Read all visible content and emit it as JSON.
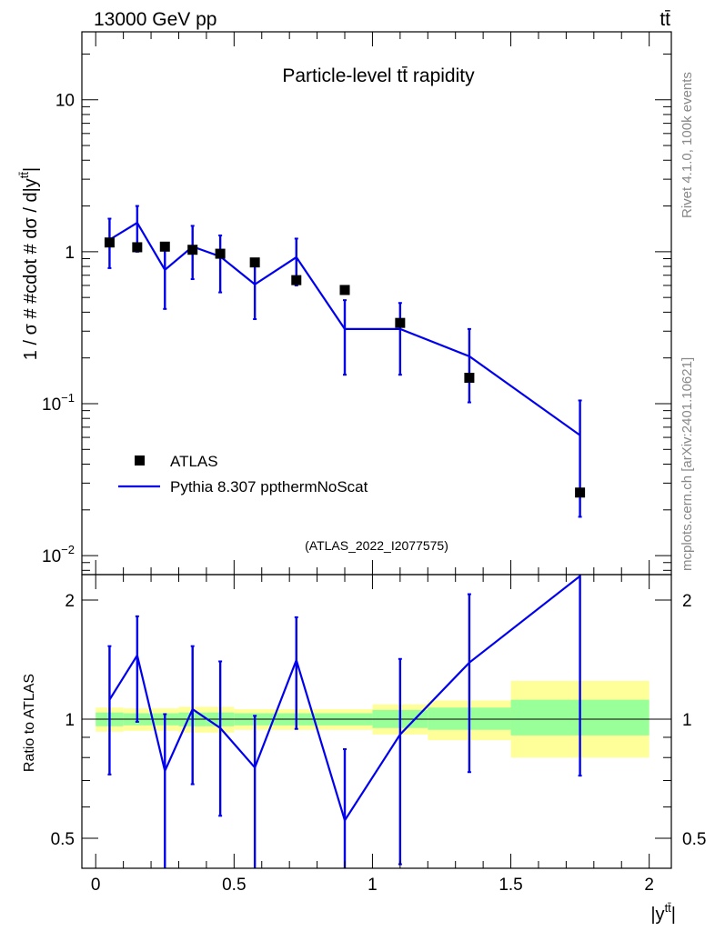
{
  "chart_data": {
    "type": "scatter",
    "header_left": "13000 GeV pp",
    "header_right": "tt̄",
    "title": "Particle-level tt̄ rapidity",
    "ylabel_main": "1 / σ # #cdot # dσ / d|y",
    "ylabel_main_sup": "tt̄",
    "ylabel_main_end": "|",
    "ylabel_ratio": "Ratio to ATLAS",
    "xlabel": "|y",
    "xlabel_sup": "tt̄",
    "xlabel_end": "|",
    "watermark": "(ATLAS_2022_I2077575)",
    "side_text_1": "Rivet 4.1.0,  100k events",
    "side_text_2": "mcplots.cern.ch [arXiv:2401.10621]",
    "main_yticks": [
      {
        "value": 0.01,
        "base": "10",
        "exp": "−2"
      },
      {
        "value": 0.1,
        "base": "10",
        "exp": "−1"
      },
      {
        "value": 1,
        "base": "1",
        "exp": ""
      },
      {
        "value": 10,
        "base": "10",
        "exp": ""
      }
    ],
    "main_ylim": [
      0.0075,
      28
    ],
    "ratio_ylim": [
      0.42,
      2.32
    ],
    "ratio_yticks": [
      {
        "value": 0.5,
        "label": "0.5"
      },
      {
        "value": 1,
        "label": "1"
      },
      {
        "value": 2,
        "label": "2"
      }
    ],
    "xlim": [
      -0.05,
      2.08
    ],
    "xticks": [
      {
        "value": 0,
        "label": "0"
      },
      {
        "value": 0.5,
        "label": "0.5"
      },
      {
        "value": 1,
        "label": "1"
      },
      {
        "value": 1.5,
        "label": "1.5"
      },
      {
        "value": 2,
        "label": "2"
      }
    ],
    "bins": [
      [
        0,
        0.1
      ],
      [
        0.1,
        0.2
      ],
      [
        0.2,
        0.3
      ],
      [
        0.3,
        0.4
      ],
      [
        0.4,
        0.5
      ],
      [
        0.5,
        0.65
      ],
      [
        0.65,
        0.8
      ],
      [
        0.8,
        1.0
      ],
      [
        1.0,
        1.2
      ],
      [
        1.2,
        1.5
      ],
      [
        1.5,
        2.0
      ]
    ],
    "atlas": {
      "name": "ATLAS",
      "x": [
        0.05,
        0.15,
        0.25,
        0.35,
        0.45,
        0.575,
        0.725,
        0.9,
        1.1,
        1.35,
        1.75
      ],
      "y": [
        1.15,
        1.07,
        1.08,
        1.03,
        0.97,
        0.85,
        0.65,
        0.56,
        0.34,
        0.148,
        0.026
      ]
    },
    "mc": {
      "name": "Pythia 8.307 ppthermNoScat",
      "x": [
        0.05,
        0.15,
        0.25,
        0.35,
        0.45,
        0.575,
        0.725,
        0.9,
        1.1,
        1.35,
        1.75
      ],
      "y": [
        1.2,
        1.55,
        0.76,
        1.08,
        0.93,
        0.61,
        0.92,
        0.31,
        0.31,
        0.205,
        0.062
      ],
      "err_lo": [
        0.78,
        1.0,
        0.42,
        0.66,
        0.54,
        0.36,
        0.6,
        0.155,
        0.155,
        0.102,
        0.018
      ],
      "err_hi": [
        1.65,
        2.0,
        1.1,
        1.48,
        1.28,
        0.9,
        1.22,
        0.48,
        0.46,
        0.31,
        0.105
      ]
    },
    "ratio": {
      "y": [
        1.12,
        1.45,
        0.74,
        1.06,
        0.95,
        0.755,
        1.41,
        0.555,
        0.915,
        1.39,
        2.3
      ],
      "err_lo": [
        0.725,
        0.985,
        0.28,
        0.685,
        0.57,
        0.385,
        0.945,
        0.3,
        0.43,
        0.735,
        0.72
      ],
      "err_hi": [
        1.53,
        1.82,
        1.03,
        1.53,
        1.4,
        1.02,
        1.81,
        0.84,
        1.42,
        2.07,
        2.32
      ],
      "green_band": [
        [
          0.96,
          1.04
        ],
        [
          0.965,
          1.035
        ],
        [
          0.965,
          1.035
        ],
        [
          0.96,
          1.04
        ],
        [
          0.96,
          1.04
        ],
        [
          0.965,
          1.035
        ],
        [
          0.965,
          1.035
        ],
        [
          0.965,
          1.035
        ],
        [
          0.95,
          1.055
        ],
        [
          0.94,
          1.07
        ],
        [
          0.91,
          1.12
        ]
      ],
      "yellow_band": [
        [
          0.93,
          1.07
        ],
        [
          0.935,
          1.065
        ],
        [
          0.935,
          1.065
        ],
        [
          0.925,
          1.075
        ],
        [
          0.925,
          1.075
        ],
        [
          0.94,
          1.06
        ],
        [
          0.94,
          1.06
        ],
        [
          0.94,
          1.06
        ],
        [
          0.915,
          1.09
        ],
        [
          0.885,
          1.115
        ],
        [
          0.8,
          1.25
        ]
      ]
    },
    "colors": {
      "data": "#000000",
      "mc": "#0000ee",
      "green": "#99ff99",
      "yellow": "#ffff99",
      "watermark": "#999999"
    }
  }
}
